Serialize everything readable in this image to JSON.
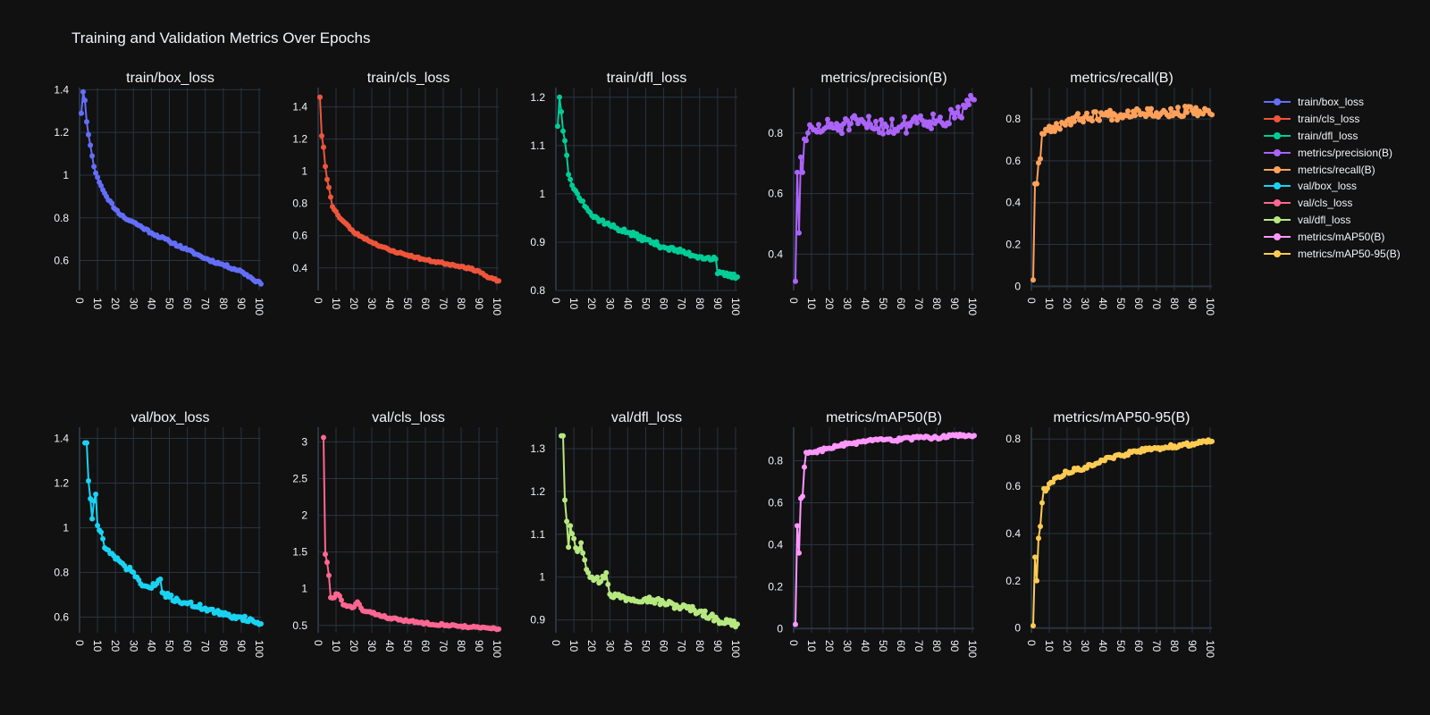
{
  "title": "Training and Validation Metrics Over Epochs",
  "colors": {
    "bg": "#111111",
    "grid": "#283442",
    "text": "#f2f5fa",
    "axisline": "#506784"
  },
  "legend": [
    {
      "label": "train/box_loss",
      "color": "#636efa"
    },
    {
      "label": "train/cls_loss",
      "color": "#EF553B"
    },
    {
      "label": "train/dfl_loss",
      "color": "#00cc96"
    },
    {
      "label": "metrics/precision(B)",
      "color": "#ab63fa"
    },
    {
      "label": "metrics/recall(B)",
      "color": "#FFA15A"
    },
    {
      "label": "val/box_loss",
      "color": "#19d3f3"
    },
    {
      "label": "val/cls_loss",
      "color": "#FF6692"
    },
    {
      "label": "val/dfl_loss",
      "color": "#B6E880"
    },
    {
      "label": "metrics/mAP50(B)",
      "color": "#FF97FF"
    },
    {
      "label": "metrics/mAP50-95(B)",
      "color": "#FECB52"
    }
  ],
  "chart_data": [
    {
      "type": "line",
      "title": "train/box_loss",
      "color": "#636efa",
      "xlim": [
        0,
        101
      ],
      "ylim": [
        0.46,
        1.41
      ],
      "yticks": [
        0.6,
        0.8,
        1,
        1.2,
        1.4
      ],
      "yticklabels": [
        "0.6",
        "0.8",
        "1",
        "1.2",
        "1.4"
      ],
      "xticks": [
        0,
        10,
        20,
        30,
        40,
        50,
        60,
        70,
        80,
        90,
        100
      ],
      "anchors": [
        [
          1,
          1.29
        ],
        [
          2,
          1.39
        ],
        [
          3,
          1.35
        ],
        [
          4,
          1.25
        ],
        [
          5,
          1.19
        ],
        [
          6,
          1.14
        ],
        [
          7,
          1.09
        ],
        [
          8,
          1.04
        ],
        [
          9,
          1.01
        ],
        [
          10,
          0.99
        ],
        [
          12,
          0.95
        ],
        [
          15,
          0.9
        ],
        [
          20,
          0.84
        ],
        [
          25,
          0.8
        ],
        [
          30,
          0.78
        ],
        [
          40,
          0.73
        ],
        [
          50,
          0.69
        ],
        [
          60,
          0.65
        ],
        [
          70,
          0.61
        ],
        [
          80,
          0.58
        ],
        [
          90,
          0.55
        ],
        [
          101,
          0.49
        ]
      ],
      "noise": 0.006,
      "seed": 11
    },
    {
      "type": "line",
      "title": "train/cls_loss",
      "color": "#EF553B",
      "xlim": [
        0,
        101
      ],
      "ylim": [
        0.26,
        1.52
      ],
      "yticks": [
        0.4,
        0.6,
        0.8,
        1,
        1.2,
        1.4
      ],
      "yticklabels": [
        "0.4",
        "0.6",
        "0.8",
        "1",
        "1.2",
        "1.4"
      ],
      "xticks": [
        0,
        10,
        20,
        30,
        40,
        50,
        60,
        70,
        80,
        90,
        100
      ],
      "anchors": [
        [
          1,
          1.46
        ],
        [
          2,
          1.22
        ],
        [
          3,
          1.15
        ],
        [
          4,
          1.03
        ],
        [
          5,
          0.95
        ],
        [
          6,
          0.9
        ],
        [
          7,
          0.84
        ],
        [
          8,
          0.78
        ],
        [
          10,
          0.75
        ],
        [
          12,
          0.71
        ],
        [
          15,
          0.68
        ],
        [
          20,
          0.62
        ],
        [
          25,
          0.59
        ],
        [
          30,
          0.56
        ],
        [
          40,
          0.51
        ],
        [
          50,
          0.48
        ],
        [
          60,
          0.45
        ],
        [
          70,
          0.43
        ],
        [
          80,
          0.41
        ],
        [
          90,
          0.38
        ],
        [
          95,
          0.34
        ],
        [
          101,
          0.32
        ]
      ],
      "noise": 0.006,
      "seed": 23
    },
    {
      "type": "line",
      "title": "train/dfl_loss",
      "color": "#00cc96",
      "xlim": [
        0,
        101
      ],
      "ylim": [
        0.8,
        1.22
      ],
      "yticks": [
        0.8,
        0.9,
        1,
        1.1,
        1.2
      ],
      "yticklabels": [
        "0.8",
        "0.9",
        "1",
        "1.1",
        "1.2"
      ],
      "xticks": [
        0,
        10,
        20,
        30,
        40,
        50,
        60,
        70,
        80,
        90,
        100
      ],
      "anchors": [
        [
          1,
          1.14
        ],
        [
          2,
          1.2
        ],
        [
          3,
          1.17
        ],
        [
          4,
          1.13
        ],
        [
          5,
          1.11
        ],
        [
          6,
          1.08
        ],
        [
          7,
          1.04
        ],
        [
          8,
          1.03
        ],
        [
          10,
          1.01
        ],
        [
          12,
          1.0
        ],
        [
          15,
          0.985
        ],
        [
          20,
          0.955
        ],
        [
          25,
          0.945
        ],
        [
          30,
          0.935
        ],
        [
          40,
          0.92
        ],
        [
          50,
          0.905
        ],
        [
          60,
          0.89
        ],
        [
          70,
          0.88
        ],
        [
          80,
          0.87
        ],
        [
          89,
          0.865
        ],
        [
          90,
          0.835
        ],
        [
          101,
          0.828
        ]
      ],
      "noise": 0.005,
      "seed": 37
    },
    {
      "type": "line",
      "title": "metrics/precision(B)",
      "color": "#ab63fa",
      "xlim": [
        0,
        101
      ],
      "ylim": [
        0.28,
        0.95
      ],
      "yticks": [
        0.4,
        0.6,
        0.8
      ],
      "yticklabels": [
        "0.4",
        "0.6",
        "0.8"
      ],
      "xticks": [
        0,
        10,
        20,
        30,
        40,
        50,
        60,
        70,
        80,
        90,
        100
      ],
      "anchors": [
        [
          1,
          0.31
        ],
        [
          2,
          0.67
        ],
        [
          3,
          0.47
        ],
        [
          4,
          0.72
        ],
        [
          5,
          0.67
        ],
        [
          6,
          0.78
        ],
        [
          8,
          0.8
        ],
        [
          12,
          0.81
        ],
        [
          20,
          0.82
        ],
        [
          40,
          0.83
        ],
        [
          60,
          0.82
        ],
        [
          70,
          0.85
        ],
        [
          80,
          0.84
        ],
        [
          90,
          0.85
        ],
        [
          101,
          0.91
        ]
      ],
      "noise": 0.03,
      "seed": 51
    },
    {
      "type": "line",
      "title": "metrics/recall(B)",
      "color": "#FFA15A",
      "xlim": [
        0,
        101
      ],
      "ylim": [
        -0.02,
        0.95
      ],
      "yticks": [
        0,
        0.2,
        0.4,
        0.6,
        0.8
      ],
      "yticklabels": [
        "0",
        "0.2",
        "0.4",
        "0.6",
        "0.8"
      ],
      "xticks": [
        0,
        10,
        20,
        30,
        40,
        50,
        60,
        70,
        80,
        90,
        100
      ],
      "anchors": [
        [
          1,
          0.03
        ],
        [
          2,
          0.49
        ],
        [
          3,
          0.49
        ],
        [
          4,
          0.59
        ],
        [
          5,
          0.61
        ],
        [
          6,
          0.73
        ],
        [
          8,
          0.75
        ],
        [
          12,
          0.76
        ],
        [
          20,
          0.79
        ],
        [
          30,
          0.81
        ],
        [
          40,
          0.82
        ],
        [
          50,
          0.82
        ],
        [
          60,
          0.84
        ],
        [
          70,
          0.83
        ],
        [
          80,
          0.83
        ],
        [
          90,
          0.84
        ],
        [
          101,
          0.82
        ]
      ],
      "noise": 0.025,
      "seed": 67
    },
    {
      "type": "line",
      "title": "val/box_loss",
      "color": "#19d3f3",
      "xlim": [
        0,
        101
      ],
      "ylim": [
        0.53,
        1.45
      ],
      "yticks": [
        0.6,
        0.8,
        1,
        1.2,
        1.4
      ],
      "yticklabels": [
        "0.6",
        "0.8",
        "1",
        "1.2",
        "1.4"
      ],
      "xticks": [
        0,
        10,
        20,
        30,
        40,
        50,
        60,
        70,
        80,
        90,
        100
      ],
      "anchors": [
        [
          3,
          1.38
        ],
        [
          4,
          1.38
        ],
        [
          5,
          1.21
        ],
        [
          6,
          1.13
        ],
        [
          7,
          1.04
        ],
        [
          8,
          1.12
        ],
        [
          9,
          1.15
        ],
        [
          10,
          1.01
        ],
        [
          12,
          0.98
        ],
        [
          14,
          0.91
        ],
        [
          16,
          0.9
        ],
        [
          20,
          0.86
        ],
        [
          25,
          0.83
        ],
        [
          30,
          0.8
        ],
        [
          35,
          0.74
        ],
        [
          40,
          0.73
        ],
        [
          45,
          0.77
        ],
        [
          46,
          0.71
        ],
        [
          50,
          0.69
        ],
        [
          60,
          0.66
        ],
        [
          70,
          0.64
        ],
        [
          80,
          0.61
        ],
        [
          90,
          0.6
        ],
        [
          101,
          0.57
        ]
      ],
      "noise": 0.012,
      "seed": 71
    },
    {
      "type": "line",
      "title": "val/cls_loss",
      "color": "#FF6692",
      "xlim": [
        0,
        101
      ],
      "ylim": [
        0.4,
        3.2
      ],
      "yticks": [
        0.5,
        1,
        1.5,
        2,
        2.5,
        3
      ],
      "yticklabels": [
        "0.5",
        "1",
        "1.5",
        "2",
        "2.5",
        "3"
      ],
      "xticks": [
        0,
        10,
        20,
        30,
        40,
        50,
        60,
        70,
        80,
        90,
        100
      ],
      "anchors": [
        [
          3,
          3.06
        ],
        [
          4,
          1.47
        ],
        [
          5,
          1.36
        ],
        [
          6,
          1.18
        ],
        [
          7,
          0.88
        ],
        [
          9,
          0.88
        ],
        [
          10,
          0.93
        ],
        [
          12,
          0.9
        ],
        [
          14,
          0.78
        ],
        [
          16,
          0.76
        ],
        [
          20,
          0.75
        ],
        [
          22,
          0.82
        ],
        [
          25,
          0.7
        ],
        [
          30,
          0.67
        ],
        [
          40,
          0.6
        ],
        [
          50,
          0.56
        ],
        [
          60,
          0.53
        ],
        [
          70,
          0.51
        ],
        [
          80,
          0.49
        ],
        [
          90,
          0.47
        ],
        [
          101,
          0.45
        ]
      ],
      "noise": 0.015,
      "seed": 83
    },
    {
      "type": "line",
      "title": "val/dfl_loss",
      "color": "#B6E880",
      "xlim": [
        0,
        101
      ],
      "ylim": [
        0.87,
        1.35
      ],
      "yticks": [
        0.9,
        1,
        1.1,
        1.2,
        1.3
      ],
      "yticklabels": [
        "0.9",
        "1",
        "1.1",
        "1.2",
        "1.3"
      ],
      "xticks": [
        0,
        10,
        20,
        30,
        40,
        50,
        60,
        70,
        80,
        90,
        100
      ],
      "anchors": [
        [
          3,
          1.33
        ],
        [
          4,
          1.33
        ],
        [
          5,
          1.18
        ],
        [
          6,
          1.13
        ],
        [
          7,
          1.07
        ],
        [
          8,
          1.12
        ],
        [
          10,
          1.09
        ],
        [
          12,
          1.06
        ],
        [
          14,
          1.08
        ],
        [
          16,
          1.04
        ],
        [
          18,
          1.01
        ],
        [
          20,
          1.0
        ],
        [
          25,
          0.99
        ],
        [
          28,
          1.01
        ],
        [
          30,
          0.96
        ],
        [
          40,
          0.95
        ],
        [
          50,
          0.95
        ],
        [
          60,
          0.94
        ],
        [
          70,
          0.93
        ],
        [
          80,
          0.92
        ],
        [
          90,
          0.9
        ],
        [
          101,
          0.89
        ]
      ],
      "noise": 0.008,
      "seed": 97
    },
    {
      "type": "line",
      "title": "metrics/mAP50(B)",
      "color": "#FF97FF",
      "xlim": [
        0,
        101
      ],
      "ylim": [
        -0.02,
        0.96
      ],
      "yticks": [
        0,
        0.2,
        0.4,
        0.6,
        0.8
      ],
      "yticklabels": [
        "0",
        "0.2",
        "0.4",
        "0.6",
        "0.8"
      ],
      "xticks": [
        0,
        10,
        20,
        30,
        40,
        50,
        60,
        70,
        80,
        90,
        100
      ],
      "anchors": [
        [
          1,
          0.02
        ],
        [
          2,
          0.49
        ],
        [
          3,
          0.36
        ],
        [
          4,
          0.62
        ],
        [
          5,
          0.63
        ],
        [
          6,
          0.77
        ],
        [
          7,
          0.84
        ],
        [
          10,
          0.84
        ],
        [
          20,
          0.86
        ],
        [
          30,
          0.88
        ],
        [
          40,
          0.89
        ],
        [
          50,
          0.9
        ],
        [
          60,
          0.9
        ],
        [
          70,
          0.91
        ],
        [
          80,
          0.91
        ],
        [
          90,
          0.92
        ],
        [
          101,
          0.92
        ]
      ],
      "noise": 0.008,
      "seed": 103
    },
    {
      "type": "line",
      "title": "metrics/mAP50-95(B)",
      "color": "#FECB52",
      "xlim": [
        0,
        101
      ],
      "ylim": [
        -0.02,
        0.85
      ],
      "yticks": [
        0,
        0.2,
        0.4,
        0.6,
        0.8
      ],
      "yticklabels": [
        "0",
        "0.2",
        "0.4",
        "0.6",
        "0.8"
      ],
      "xticks": [
        0,
        10,
        20,
        30,
        40,
        50,
        60,
        70,
        80,
        90,
        100
      ],
      "anchors": [
        [
          1,
          0.01
        ],
        [
          2,
          0.3
        ],
        [
          3,
          0.2
        ],
        [
          4,
          0.38
        ],
        [
          5,
          0.43
        ],
        [
          6,
          0.53
        ],
        [
          7,
          0.59
        ],
        [
          8,
          0.58
        ],
        [
          10,
          0.61
        ],
        [
          15,
          0.64
        ],
        [
          20,
          0.66
        ],
        [
          30,
          0.68
        ],
        [
          40,
          0.71
        ],
        [
          50,
          0.73
        ],
        [
          60,
          0.75
        ],
        [
          70,
          0.76
        ],
        [
          80,
          0.77
        ],
        [
          90,
          0.78
        ],
        [
          101,
          0.79
        ]
      ],
      "noise": 0.008,
      "seed": 113
    }
  ]
}
